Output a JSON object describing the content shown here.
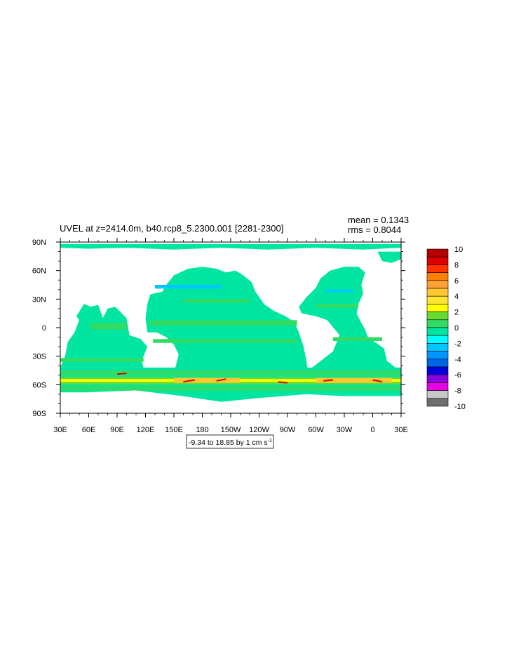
{
  "chart_data": {
    "type": "heatmap",
    "title": "UVEL at z=2414.0m, b40.rcp8_5.2300.001 [2281-2300]",
    "stats": {
      "mean_label": "mean = 0.1343",
      "rms_label": "rms = 0.8044"
    },
    "subtitle": "-9.34 to 18.85 by 1 cm s",
    "subtitle_sup": "-1",
    "x_ticks": [
      "30E",
      "60E",
      "90E",
      "120E",
      "150E",
      "180",
      "150W",
      "120W",
      "90W",
      "60W",
      "30W",
      "0",
      "30E"
    ],
    "y_ticks": [
      "90N",
      "60N",
      "30N",
      "0",
      "30S",
      "60S",
      "90S"
    ],
    "xlim": [
      30,
      390
    ],
    "ylim": [
      -90,
      90
    ],
    "colorbar": {
      "labels": [
        "10",
        "8",
        "6",
        "4",
        "2",
        "0",
        "-2",
        "-4",
        "-6",
        "-8",
        "-10"
      ],
      "colors": [
        "#b40000",
        "#dc0000",
        "#ff3200",
        "#ff7f00",
        "#ffa032",
        "#ffc832",
        "#ffe632",
        "#ffff00",
        "#64dc32",
        "#32dc64",
        "#00e6a0",
        "#00ffff",
        "#00c8ff",
        "#0096ff",
        "#0064e6",
        "#0000dc",
        "#8c00dc",
        "#e600e6",
        "#c8c8c8",
        "#6e6e6e"
      ]
    }
  }
}
